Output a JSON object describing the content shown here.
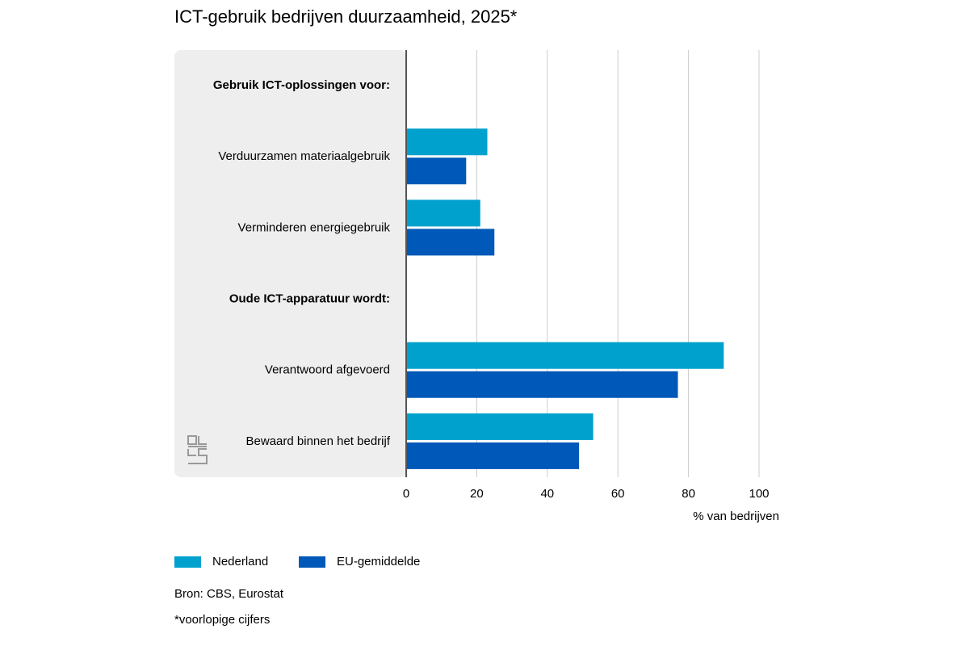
{
  "chart_data": {
    "type": "bar",
    "orientation": "horizontal",
    "title": "ICT-gebruik bedrijven duurzaamheid, 2025*",
    "categories": [
      "Gebruik ICT-oplossingen voor:",
      "Verduurzamen materiaalgebruik",
      "Verminderen energiegebruik",
      "Oude ICT-apparatuur wordt:",
      "Verantwoord afgevoerd",
      "Bewaard binnen het bedrijf"
    ],
    "series": [
      {
        "name": "Nederland",
        "color": "#00a1cd",
        "values": [
          null,
          23,
          21,
          null,
          90,
          53
        ]
      },
      {
        "name": "EU-gemiddelde",
        "color": "#0058b8",
        "values": [
          null,
          17,
          25,
          null,
          77,
          49
        ]
      }
    ],
    "xlim": [
      0,
      100
    ],
    "xticks": [
      0,
      20,
      40,
      60,
      80,
      100
    ],
    "grid": true,
    "xlabel": "% van bedrijven",
    "source": "Bron: CBS, Eurostat",
    "note": "*voorlopige cijfers"
  }
}
